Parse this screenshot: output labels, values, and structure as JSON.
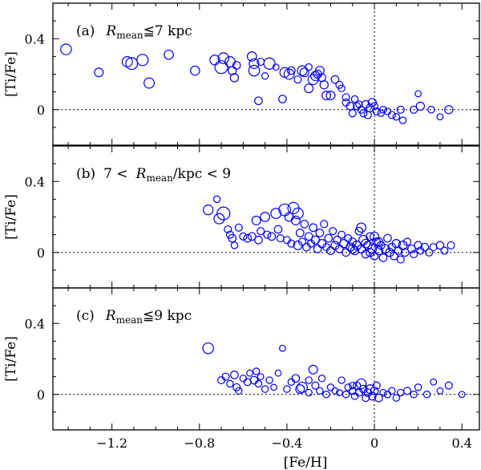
{
  "chart_data": {
    "type": "scatter",
    "x_axis": {
      "label": "[Fe/H]",
      "lim": [
        -1.47,
        0.48
      ],
      "ticks": [
        -1.2,
        -0.8,
        -0.4,
        0,
        0.4
      ],
      "tick_labels": [
        "−1.2",
        "−0.8",
        "−0.4",
        "0",
        "0.4"
      ]
    },
    "y_axis": {
      "label": "[Ti/Fe]",
      "lim": [
        -0.2,
        0.6
      ],
      "ticks": [
        0,
        0.4
      ],
      "tick_labels": [
        "0",
        "0.4"
      ]
    },
    "reference_lines": {
      "horizontal_y": 0,
      "vertical_x": 0
    },
    "panels": [
      {
        "id": "a",
        "tag": "(a)",
        "sym": "R",
        "sub": "mean",
        "rest": "≦7 kpc",
        "points": [
          [
            -1.41,
            0.34,
            1.4
          ],
          [
            -1.26,
            0.21,
            1.0
          ],
          [
            -1.13,
            0.27,
            1.3
          ],
          [
            -1.11,
            0.26,
            1.6
          ],
          [
            -1.06,
            0.28,
            1.5
          ],
          [
            -1.03,
            0.15,
            1.3
          ],
          [
            -0.94,
            0.31,
            1.1
          ],
          [
            -0.82,
            0.22,
            1.1
          ],
          [
            -0.73,
            0.28,
            1.2
          ],
          [
            -0.7,
            0.24,
            1.8
          ],
          [
            -0.69,
            0.29,
            1.4
          ],
          [
            -0.66,
            0.27,
            1.3
          ],
          [
            -0.65,
            0.22,
            0.9
          ],
          [
            -0.64,
            0.18,
            0.9
          ],
          [
            -0.63,
            0.25,
            0.8
          ],
          [
            -0.56,
            0.3,
            1.1
          ],
          [
            -0.55,
            0.26,
            1.2
          ],
          [
            -0.55,
            0.22,
            1.4
          ],
          [
            -0.53,
            0.05,
            0.8
          ],
          [
            -0.52,
            0.27,
            0.7
          ],
          [
            -0.5,
            0.19,
            0.6
          ],
          [
            -0.48,
            0.26,
            1.5
          ],
          [
            -0.45,
            0.24,
            0.5
          ],
          [
            -0.42,
            0.06,
            0.8
          ],
          [
            -0.41,
            0.21,
            1.2
          ],
          [
            -0.39,
            0.2,
            1.3
          ],
          [
            -0.38,
            0.22,
            0.8
          ],
          [
            -0.35,
            0.17,
            0.7
          ],
          [
            -0.33,
            0.22,
            1.2
          ],
          [
            -0.32,
            0.21,
            1.0
          ],
          [
            -0.3,
            0.24,
            0.6
          ],
          [
            -0.3,
            0.12,
            1.0
          ],
          [
            -0.28,
            0.17,
            1.3
          ],
          [
            -0.27,
            0.19,
            1.1
          ],
          [
            -0.26,
            0.2,
            0.9
          ],
          [
            -0.25,
            0.22,
            1.0
          ],
          [
            -0.24,
            0.18,
            0.8
          ],
          [
            -0.23,
            0.14,
            0.9
          ],
          [
            -0.22,
            0.08,
            1.0
          ],
          [
            -0.2,
            0.08,
            1.0
          ],
          [
            -0.18,
            0.17,
            0.8
          ],
          [
            -0.16,
            0.14,
            0.7
          ],
          [
            -0.15,
            0.12,
            0.6
          ],
          [
            -0.13,
            0.07,
            0.7
          ],
          [
            -0.13,
            0.04,
            0.7
          ],
          [
            -0.11,
            0.02,
            0.8
          ],
          [
            -0.1,
            -0.02,
            0.7
          ],
          [
            -0.09,
            0.06,
            0.6
          ],
          [
            -0.08,
            0.02,
            0.7
          ],
          [
            -0.07,
            0.03,
            0.6
          ],
          [
            -0.06,
            0.0,
            0.7
          ],
          [
            -0.05,
            -0.02,
            0.7
          ],
          [
            -0.04,
            0.03,
            0.8
          ],
          [
            -0.03,
            -0.03,
            0.7
          ],
          [
            -0.02,
            0.01,
            0.8
          ],
          [
            -0.01,
            0.04,
            0.9
          ],
          [
            0.0,
            0.02,
            0.7
          ],
          [
            0.01,
            -0.01,
            0.7
          ],
          [
            0.03,
            -0.02,
            0.6
          ],
          [
            0.04,
            0.0,
            0.6
          ],
          [
            0.06,
            -0.01,
            0.6
          ],
          [
            0.08,
            -0.03,
            0.7
          ],
          [
            0.1,
            -0.04,
            0.6
          ],
          [
            0.12,
            0.0,
            0.7
          ],
          [
            0.13,
            -0.06,
            0.6
          ],
          [
            0.18,
            0.0,
            0.7
          ],
          [
            0.2,
            0.09,
            0.5
          ],
          [
            0.21,
            0.02,
            0.9
          ],
          [
            0.26,
            0.0,
            0.6
          ],
          [
            0.3,
            -0.04,
            0.5
          ],
          [
            0.34,
            0.0,
            0.9
          ]
        ]
      },
      {
        "id": "b",
        "tag": "(b)",
        "lead": "7 <",
        "sym": "R",
        "sub": "mean",
        "rest": "/kpc < 9",
        "points": [
          [
            -0.76,
            0.24,
            1.2
          ],
          [
            -0.72,
            0.3,
            0.6
          ],
          [
            -0.71,
            0.19,
            1.3
          ],
          [
            -0.69,
            0.22,
            1.8
          ],
          [
            -0.67,
            0.13,
            0.7
          ],
          [
            -0.66,
            0.1,
            0.7
          ],
          [
            -0.65,
            0.08,
            0.8
          ],
          [
            -0.64,
            0.04,
            0.6
          ],
          [
            -0.62,
            0.14,
            0.7
          ],
          [
            -0.6,
            0.09,
            0.7
          ],
          [
            -0.58,
            0.08,
            0.8
          ],
          [
            -0.56,
            0.09,
            0.8
          ],
          [
            -0.54,
            0.18,
            1.0
          ],
          [
            -0.53,
            0.07,
            0.8
          ],
          [
            -0.52,
            0.12,
            0.7
          ],
          [
            -0.5,
            0.2,
            1.1
          ],
          [
            -0.49,
            0.1,
            0.7
          ],
          [
            -0.47,
            0.09,
            0.8
          ],
          [
            -0.45,
            0.22,
            1.3
          ],
          [
            -0.44,
            0.13,
            0.8
          ],
          [
            -0.43,
            0.08,
            0.7
          ],
          [
            -0.41,
            0.24,
            1.6
          ],
          [
            -0.4,
            0.07,
            0.7
          ],
          [
            -0.39,
            0.2,
            1.0
          ],
          [
            -0.38,
            0.05,
            0.7
          ],
          [
            -0.37,
            0.25,
            1.5
          ],
          [
            -0.36,
            0.18,
            1.0
          ],
          [
            -0.35,
            0.22,
            1.4
          ],
          [
            -0.35,
            0.04,
            1.0
          ],
          [
            -0.34,
            0.11,
            0.8
          ],
          [
            -0.33,
            0.06,
            0.7
          ],
          [
            -0.32,
            0.16,
            0.8
          ],
          [
            -0.31,
            0.03,
            0.8
          ],
          [
            -0.3,
            0.09,
            0.8
          ],
          [
            -0.29,
            0.05,
            0.7
          ],
          [
            -0.28,
            0.14,
            0.8
          ],
          [
            -0.27,
            0.07,
            0.9
          ],
          [
            -0.26,
            0.02,
            0.8
          ],
          [
            -0.25,
            0.11,
            0.8
          ],
          [
            -0.24,
            0.05,
            0.9
          ],
          [
            -0.23,
            0.16,
            0.7
          ],
          [
            -0.22,
            0.03,
            0.7
          ],
          [
            -0.21,
            0.08,
            0.8
          ],
          [
            -0.2,
            0.01,
            0.8
          ],
          [
            -0.19,
            0.12,
            0.7
          ],
          [
            -0.18,
            0.04,
            0.9
          ],
          [
            -0.17,
            0.07,
            0.8
          ],
          [
            -0.16,
            0.02,
            0.8
          ],
          [
            -0.15,
            0.1,
            0.7
          ],
          [
            -0.14,
            0.05,
            0.9
          ],
          [
            -0.13,
            0.0,
            0.8
          ],
          [
            -0.12,
            0.08,
            0.7
          ],
          [
            -0.11,
            0.03,
            0.9
          ],
          [
            -0.1,
            0.06,
            0.8
          ],
          [
            -0.09,
            0.01,
            0.9
          ],
          [
            -0.08,
            0.04,
            1.0
          ],
          [
            -0.07,
            0.12,
            0.8
          ],
          [
            -0.06,
            0.02,
            0.9
          ],
          [
            -0.05,
            0.07,
            1.1
          ],
          [
            -0.04,
            -0.01,
            0.8
          ],
          [
            -0.03,
            0.04,
            0.9
          ],
          [
            -0.02,
            0.09,
            0.8
          ],
          [
            -0.01,
            0.02,
            1.0
          ],
          [
            0.0,
            -0.02,
            0.8
          ],
          [
            0.01,
            0.06,
            0.8
          ],
          [
            0.02,
            0.01,
            0.9
          ],
          [
            0.03,
            0.04,
            0.8
          ],
          [
            0.04,
            -0.03,
            0.8
          ],
          [
            0.05,
            0.02,
            1.0
          ],
          [
            0.06,
            0.08,
            0.8
          ],
          [
            0.07,
            0.0,
            0.9
          ],
          [
            0.08,
            0.03,
            0.8
          ],
          [
            0.09,
            -0.02,
            0.8
          ],
          [
            0.1,
            0.05,
            0.9
          ],
          [
            0.11,
            0.01,
            0.8
          ],
          [
            0.12,
            -0.04,
            0.7
          ],
          [
            0.13,
            0.04,
            1.0
          ],
          [
            0.14,
            0.0,
            0.8
          ],
          [
            0.15,
            0.06,
            0.7
          ],
          [
            0.17,
            0.02,
            0.8
          ],
          [
            0.18,
            -0.01,
            0.7
          ],
          [
            0.2,
            0.04,
            0.8
          ],
          [
            0.21,
            0.01,
            0.7
          ],
          [
            0.23,
            0.03,
            0.8
          ],
          [
            0.25,
            0.0,
            0.7
          ],
          [
            0.27,
            0.03,
            0.7
          ],
          [
            0.3,
            0.04,
            0.8
          ],
          [
            0.32,
            0.01,
            0.7
          ],
          [
            0.35,
            0.04,
            0.7
          ],
          [
            -0.06,
            0.14,
            1.1
          ],
          [
            0.0,
            0.09,
            1.0
          ],
          [
            -0.04,
            0.05,
            1.0
          ],
          [
            0.02,
            0.06,
            0.9
          ],
          [
            -0.1,
            0.02,
            1.0
          ],
          [
            -0.02,
            0.0,
            0.9
          ]
        ]
      },
      {
        "id": "c",
        "tag": "(c)",
        "sym": "R",
        "sub": "mean",
        "rest": "≦9 kpc",
        "points": [
          [
            -0.76,
            0.26,
            1.4
          ],
          [
            -0.7,
            0.08,
            0.7
          ],
          [
            -0.68,
            0.1,
            0.7
          ],
          [
            -0.66,
            0.06,
            0.6
          ],
          [
            -0.64,
            0.11,
            0.8
          ],
          [
            -0.63,
            0.04,
            0.7
          ],
          [
            -0.62,
            0.02,
            0.6
          ],
          [
            -0.6,
            0.09,
            0.6
          ],
          [
            -0.58,
            0.07,
            0.7
          ],
          [
            -0.57,
            0.12,
            0.5
          ],
          [
            -0.55,
            0.08,
            0.8
          ],
          [
            -0.54,
            0.13,
            0.6
          ],
          [
            -0.53,
            0.06,
            0.6
          ],
          [
            -0.52,
            0.1,
            0.5
          ],
          [
            -0.5,
            0.03,
            0.6
          ],
          [
            -0.48,
            0.08,
            0.6
          ],
          [
            -0.46,
            0.04,
            0.5
          ],
          [
            -0.44,
            0.12,
            0.5
          ],
          [
            -0.42,
            0.26,
            0.5
          ],
          [
            -0.4,
            0.03,
            0.6
          ],
          [
            -0.38,
            0.07,
            0.6
          ],
          [
            -0.36,
            0.09,
            0.8
          ],
          [
            -0.34,
            0.03,
            1.0
          ],
          [
            -0.33,
            0.04,
            1.3
          ],
          [
            -0.3,
            0.08,
            0.6
          ],
          [
            -0.28,
            0.14,
            1.0
          ],
          [
            -0.27,
            0.05,
            0.7
          ],
          [
            -0.25,
            0.02,
            0.6
          ],
          [
            -0.24,
            0.09,
            0.6
          ],
          [
            -0.22,
            0.0,
            0.6
          ],
          [
            -0.2,
            0.04,
            0.6
          ],
          [
            -0.18,
            0.02,
            0.5
          ],
          [
            -0.15,
            0.08,
            0.6
          ],
          [
            -0.13,
            0.0,
            0.6
          ],
          [
            -0.12,
            0.04,
            0.6
          ],
          [
            -0.1,
            0.02,
            0.6
          ],
          [
            -0.09,
            -0.01,
            0.6
          ],
          [
            -0.08,
            0.05,
            0.7
          ],
          [
            -0.07,
            0.01,
            0.7
          ],
          [
            -0.06,
            0.06,
            1.2
          ],
          [
            -0.05,
            0.03,
            0.8
          ],
          [
            -0.04,
            -0.02,
            0.7
          ],
          [
            -0.03,
            0.01,
            0.8
          ],
          [
            -0.02,
            0.03,
            1.0
          ],
          [
            -0.01,
            -0.01,
            0.8
          ],
          [
            0.0,
            0.02,
            0.8
          ],
          [
            0.01,
            0.05,
            0.7
          ],
          [
            0.02,
            -0.02,
            0.8
          ],
          [
            0.04,
            0.01,
            0.6
          ],
          [
            0.06,
            0.0,
            0.6
          ],
          [
            0.08,
            0.02,
            0.6
          ],
          [
            0.1,
            -0.02,
            0.6
          ],
          [
            0.12,
            0.01,
            0.6
          ],
          [
            0.15,
            0.02,
            0.7
          ],
          [
            0.18,
            0.0,
            0.6
          ],
          [
            0.2,
            0.04,
            0.6
          ],
          [
            0.24,
            0.0,
            0.6
          ],
          [
            0.27,
            0.07,
            0.5
          ],
          [
            0.3,
            0.02,
            0.5
          ],
          [
            0.34,
            0.05,
            0.7
          ],
          [
            0.4,
            0.0,
            0.5
          ],
          [
            -0.1,
            0.05,
            0.6
          ],
          [
            -0.16,
            0.01,
            0.5
          ],
          [
            -0.3,
            0.01,
            0.6
          ]
        ]
      }
    ]
  }
}
